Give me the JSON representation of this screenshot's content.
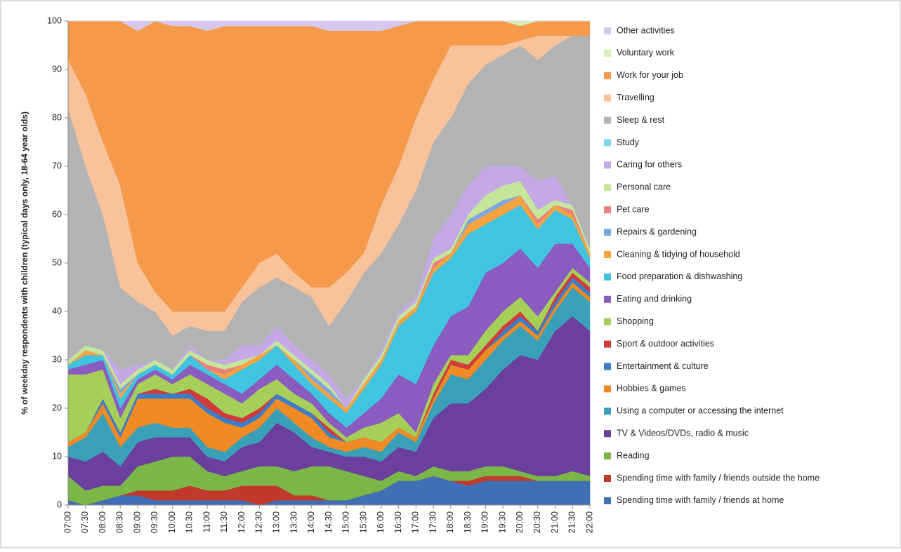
{
  "chart_data": {
    "type": "stacked_area",
    "y_label": "% of weekday respondents with children (typical days only, 18-64 year olds)",
    "categories": [
      "07:00",
      "07:30",
      "08:00",
      "08:30",
      "09:00",
      "09:30",
      "10:00",
      "10:30",
      "11:00",
      "11:30",
      "12:00",
      "12:30",
      "13:00",
      "13:30",
      "14:00",
      "14:30",
      "15:00",
      "15:30",
      "16:00",
      "16:30",
      "17:00",
      "17:30",
      "18:00",
      "18:30",
      "19:00",
      "19:30",
      "20:00",
      "20:30",
      "21:00",
      "21:30",
      "22:00"
    ],
    "ylim": [
      0,
      100
    ],
    "yticks": [
      0,
      10,
      20,
      30,
      40,
      50,
      60,
      70,
      80,
      90,
      100
    ],
    "series": [
      {
        "name": "Spending time with family / friends at home",
        "color": "#3f6fb4",
        "values": [
          1,
          0,
          1,
          2,
          2,
          1,
          1,
          1,
          1,
          1,
          1,
          0,
          1,
          1,
          1,
          1,
          1,
          2,
          3,
          5,
          5,
          6,
          5,
          4,
          5,
          5,
          5,
          5,
          5,
          5,
          5
        ]
      },
      {
        "name": "Spending time with family / friends outside the home",
        "color": "#c0392b",
        "values": [
          0,
          0,
          0,
          0,
          1,
          2,
          2,
          3,
          2,
          2,
          3,
          4,
          3,
          1,
          1,
          0,
          0,
          0,
          0,
          0,
          0,
          0,
          0,
          1,
          1,
          1,
          1,
          0,
          0,
          0,
          0
        ]
      },
      {
        "name": "Reading",
        "color": "#7ab648",
        "values": [
          5,
          3,
          3,
          2,
          5,
          6,
          7,
          6,
          4,
          3,
          3,
          4,
          4,
          5,
          6,
          7,
          6,
          4,
          2,
          2,
          1,
          2,
          2,
          2,
          2,
          2,
          1,
          1,
          1,
          2,
          1
        ]
      },
      {
        "name": "TV & Videos/DVDs, radio & music",
        "color": "#6a3f9e",
        "values": [
          4,
          6,
          7,
          4,
          5,
          5,
          4,
          4,
          3,
          3,
          5,
          5,
          9,
          8,
          4,
          3,
          3,
          4,
          4,
          5,
          5,
          10,
          14,
          14,
          16,
          20,
          24,
          24,
          30,
          32,
          30
        ]
      },
      {
        "name": "Using a computer or accessing the internet",
        "color": "#3aa0b8",
        "values": [
          2,
          5,
          8,
          4,
          3,
          3,
          2,
          2,
          2,
          2,
          2,
          3,
          3,
          2,
          2,
          1,
          1,
          2,
          2,
          3,
          2,
          3,
          6,
          5,
          6,
          6,
          6,
          4,
          4,
          6,
          6
        ]
      },
      {
        "name": "Hobbies & games",
        "color": "#f08a24",
        "values": [
          1,
          1,
          2,
          2,
          6,
          5,
          6,
          6,
          7,
          6,
          2,
          2,
          2,
          3,
          4,
          2,
          2,
          2,
          2,
          1,
          1,
          1,
          2,
          2,
          2,
          1,
          1,
          1,
          1,
          1,
          1
        ]
      },
      {
        "name": "Entertainment & culture",
        "color": "#3a7dc9",
        "values": [
          0,
          0,
          1,
          1,
          1,
          1,
          1,
          1,
          1,
          1,
          1,
          1,
          1,
          1,
          1,
          1,
          0,
          0,
          0,
          0,
          0,
          0,
          0,
          0,
          0,
          1,
          1,
          1,
          1,
          1,
          1
        ]
      },
      {
        "name": "Sport & outdoor activities",
        "color": "#d13b3b",
        "values": [
          0,
          0,
          0,
          0,
          0,
          1,
          0,
          1,
          2,
          1,
          1,
          1,
          0,
          0,
          0,
          1,
          0,
          0,
          0,
          0,
          0,
          1,
          1,
          1,
          1,
          1,
          1,
          0,
          1,
          1,
          1
        ]
      },
      {
        "name": "Shopping",
        "color": "#a6cf5a",
        "values": [
          14,
          12,
          6,
          3,
          2,
          3,
          2,
          3,
          3,
          4,
          3,
          4,
          3,
          2,
          2,
          1,
          1,
          2,
          4,
          3,
          1,
          2,
          1,
          2,
          3,
          3,
          3,
          3,
          1,
          1,
          1
        ]
      },
      {
        "name": "Eating and drinking",
        "color": "#8a5cc0",
        "values": [
          1,
          2,
          2,
          2,
          1,
          1,
          1,
          2,
          2,
          2,
          2,
          2,
          3,
          3,
          2,
          2,
          2,
          3,
          5,
          8,
          10,
          8,
          8,
          10,
          12,
          10,
          10,
          10,
          10,
          5,
          3
        ]
      },
      {
        "name": "Food preparation & dishwashing",
        "color": "#40c4e0",
        "values": [
          1,
          2,
          1,
          2,
          1,
          1,
          1,
          2,
          1,
          1,
          5,
          4,
          4,
          3,
          2,
          3,
          3,
          5,
          7,
          10,
          15,
          15,
          12,
          15,
          10,
          10,
          9,
          8,
          7,
          5,
          2
        ]
      },
      {
        "name": "Cleaning & tidying of household",
        "color": "#f7a440",
        "values": [
          0,
          1,
          0,
          1,
          0,
          0,
          0,
          0,
          0,
          1,
          1,
          1,
          0,
          1,
          1,
          1,
          1,
          1,
          1,
          1,
          1,
          1,
          1,
          2,
          2,
          2,
          2,
          1,
          1,
          1,
          1
        ]
      },
      {
        "name": "Repairs & gardening",
        "color": "#7ba7e0",
        "values": [
          0,
          0,
          0,
          1,
          0,
          0,
          0,
          0,
          0,
          0,
          0,
          0,
          0,
          0,
          1,
          1,
          0,
          0,
          0,
          0,
          0,
          0,
          0,
          1,
          1,
          1,
          0,
          0,
          0,
          0,
          0
        ]
      },
      {
        "name": "Pet care",
        "color": "#ef7f7f",
        "values": [
          0,
          0,
          0,
          0,
          0,
          0,
          0,
          0,
          1,
          1,
          0,
          0,
          0,
          0,
          0,
          0,
          0,
          0,
          0,
          0,
          0,
          1,
          0,
          0,
          0,
          0,
          0,
          1,
          0,
          1,
          0
        ]
      },
      {
        "name": "Personal care",
        "color": "#c4e59a",
        "values": [
          1,
          1,
          1,
          1,
          1,
          1,
          1,
          1,
          1,
          1,
          1,
          0,
          1,
          1,
          1,
          1,
          0,
          1,
          1,
          1,
          1,
          1,
          1,
          1,
          3,
          3,
          3,
          2,
          1,
          1,
          1
        ]
      },
      {
        "name": "Caring for others",
        "color": "#c5a9e6",
        "values": [
          0,
          0,
          0,
          3,
          1,
          0,
          0,
          1,
          0,
          1,
          3,
          2,
          3,
          2,
          2,
          2,
          2,
          0,
          1,
          1,
          1,
          4,
          7,
          6,
          6,
          4,
          3,
          6,
          5,
          0,
          0
        ]
      },
      {
        "name": "Study",
        "color": "#7fd6ea",
        "values": [
          0,
          0,
          0,
          0,
          0,
          0,
          0,
          0,
          0,
          0,
          0,
          0,
          0,
          0,
          0,
          0,
          0,
          0,
          0,
          0,
          0,
          0,
          0,
          0,
          0,
          0,
          0,
          0,
          0,
          0,
          0
        ]
      },
      {
        "name": "Sleep & rest",
        "color": "#b3b3b3",
        "values": [
          52,
          37,
          28,
          17,
          13,
          10,
          7,
          4,
          6,
          6,
          9,
          12,
          10,
          12,
          13,
          10,
          20,
          22,
          20,
          18,
          22,
          20,
          20,
          21,
          21,
          23,
          25,
          25,
          27,
          35,
          44
        ]
      },
      {
        "name": "Travelling",
        "color": "#f8c29a",
        "values": [
          10,
          15,
          15,
          21,
          8,
          4,
          5,
          3,
          4,
          4,
          3,
          5,
          5,
          3,
          2,
          8,
          6,
          4,
          10,
          12,
          15,
          13,
          15,
          8,
          4,
          2,
          1,
          5,
          2,
          0,
          0
        ]
      },
      {
        "name": "Work for your job",
        "color": "#f5994a",
        "values": [
          8,
          15,
          25,
          34,
          48,
          56,
          59,
          59,
          58,
          59,
          54,
          49,
          47,
          51,
          54,
          53,
          50,
          46,
          36,
          29,
          20,
          12,
          5,
          5,
          5,
          5,
          3,
          3,
          3,
          3,
          3
        ]
      },
      {
        "name": "Voluntary work",
        "color": "#d7f0b5",
        "values": [
          0,
          0,
          0,
          0,
          0,
          0,
          0,
          0,
          0,
          0,
          0,
          0,
          0,
          0,
          0,
          0,
          0,
          0,
          0,
          0,
          0,
          0,
          0,
          0,
          0,
          0,
          1,
          0,
          0,
          0,
          0
        ]
      },
      {
        "name": "Other activities",
        "color": "#d5c8ec",
        "values": [
          0,
          0,
          0,
          0,
          2,
          0,
          1,
          1,
          2,
          1,
          1,
          1,
          1,
          1,
          1,
          2,
          2,
          2,
          2,
          1,
          0,
          0,
          0,
          0,
          0,
          0,
          0,
          0,
          0,
          0,
          0
        ]
      }
    ]
  }
}
